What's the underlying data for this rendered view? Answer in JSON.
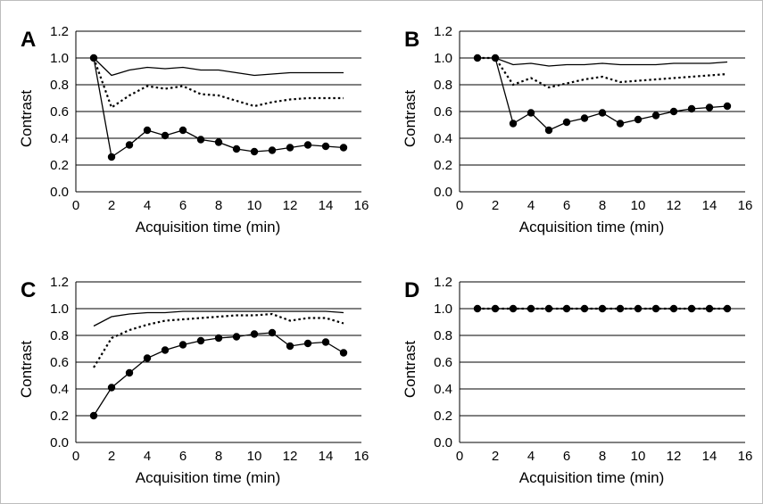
{
  "chart_data": [
    {
      "type": "line",
      "panel_label": "A",
      "xlabel": "Acquisition time  (min)",
      "ylabel": "Contrast",
      "xlim": [
        0,
        16
      ],
      "ylim": [
        0,
        1.2
      ],
      "xticks": [
        "0",
        "2",
        "4",
        "6",
        "8",
        "10",
        "12",
        "14",
        "16"
      ],
      "yticks": [
        "0.0",
        "0.2",
        "0.4",
        "0.6",
        "0.8",
        "1.0",
        "1.2"
      ],
      "grid": "horizontal",
      "legend": "none",
      "x": [
        1,
        2,
        3,
        4,
        5,
        6,
        7,
        8,
        9,
        10,
        11,
        12,
        13,
        14,
        15
      ],
      "series": [
        {
          "style": "solid",
          "values": [
            1.0,
            0.87,
            0.91,
            0.93,
            0.92,
            0.93,
            0.91,
            0.91,
            0.89,
            0.87,
            0.88,
            0.89,
            0.89,
            0.89,
            0.89
          ]
        },
        {
          "style": "dotted",
          "values": [
            1.0,
            0.63,
            0.72,
            0.79,
            0.77,
            0.79,
            0.73,
            0.72,
            0.68,
            0.64,
            0.67,
            0.69,
            0.7,
            0.7,
            0.7
          ]
        },
        {
          "style": "markers",
          "values": [
            1.0,
            0.26,
            0.35,
            0.46,
            0.42,
            0.46,
            0.39,
            0.37,
            0.32,
            0.3,
            0.31,
            0.33,
            0.35,
            0.34,
            0.33
          ]
        }
      ]
    },
    {
      "type": "line",
      "panel_label": "B",
      "xlabel": "Acquisition time  (min)",
      "ylabel": "Contrast",
      "xlim": [
        0,
        16
      ],
      "ylim": [
        0,
        1.2
      ],
      "xticks": [
        "0",
        "2",
        "4",
        "6",
        "8",
        "10",
        "12",
        "14",
        "16"
      ],
      "yticks": [
        "0.0",
        "0.2",
        "0.4",
        "0.6",
        "0.8",
        "1.0",
        "1.2"
      ],
      "grid": "horizontal",
      "legend": "none",
      "x": [
        1,
        2,
        3,
        4,
        5,
        6,
        7,
        8,
        9,
        10,
        11,
        12,
        13,
        14,
        15
      ],
      "series": [
        {
          "style": "solid",
          "values": [
            1.0,
            1.0,
            0.95,
            0.96,
            0.94,
            0.95,
            0.95,
            0.96,
            0.95,
            0.95,
            0.95,
            0.96,
            0.96,
            0.96,
            0.97
          ]
        },
        {
          "style": "dotted",
          "values": [
            1.0,
            1.0,
            0.8,
            0.85,
            0.78,
            0.81,
            0.84,
            0.86,
            0.82,
            0.83,
            0.84,
            0.85,
            0.86,
            0.87,
            0.88
          ]
        },
        {
          "style": "markers",
          "values": [
            1.0,
            1.0,
            0.51,
            0.59,
            0.46,
            0.52,
            0.55,
            0.59,
            0.51,
            0.54,
            0.57,
            0.6,
            0.62,
            0.63,
            0.64
          ]
        }
      ]
    },
    {
      "type": "line",
      "panel_label": "C",
      "xlabel": "Acquisition time  (min)",
      "ylabel": "Contrast",
      "xlim": [
        0,
        16
      ],
      "ylim": [
        0,
        1.2
      ],
      "xticks": [
        "0",
        "2",
        "4",
        "6",
        "8",
        "10",
        "12",
        "14",
        "16"
      ],
      "yticks": [
        "0.0",
        "0.2",
        "0.4",
        "0.6",
        "0.8",
        "1.0",
        "1.2"
      ],
      "grid": "horizontal",
      "legend": "none",
      "x": [
        1,
        2,
        3,
        4,
        5,
        6,
        7,
        8,
        9,
        10,
        11,
        12,
        13,
        14,
        15
      ],
      "series": [
        {
          "style": "solid",
          "values": [
            0.87,
            0.94,
            0.96,
            0.97,
            0.97,
            0.98,
            0.98,
            0.98,
            0.98,
            0.98,
            0.98,
            0.98,
            0.98,
            0.98,
            0.97
          ]
        },
        {
          "style": "dotted",
          "values": [
            0.56,
            0.78,
            0.84,
            0.88,
            0.91,
            0.92,
            0.93,
            0.94,
            0.95,
            0.95,
            0.96,
            0.91,
            0.93,
            0.93,
            0.89
          ]
        },
        {
          "style": "markers",
          "values": [
            0.2,
            0.41,
            0.52,
            0.63,
            0.69,
            0.73,
            0.76,
            0.78,
            0.79,
            0.81,
            0.82,
            0.72,
            0.74,
            0.75,
            0.67
          ]
        }
      ]
    },
    {
      "type": "line",
      "panel_label": "D",
      "xlabel": "Acquisition time  (min)",
      "ylabel": "Contrast",
      "xlim": [
        0,
        16
      ],
      "ylim": [
        0,
        1.2
      ],
      "xticks": [
        "0",
        "2",
        "4",
        "6",
        "8",
        "10",
        "12",
        "14",
        "16"
      ],
      "yticks": [
        "0.0",
        "0.2",
        "0.4",
        "0.6",
        "0.8",
        "1.0",
        "1.2"
      ],
      "grid": "horizontal",
      "legend": "none",
      "x": [
        1,
        2,
        3,
        4,
        5,
        6,
        7,
        8,
        9,
        10,
        11,
        12,
        13,
        14,
        15
      ],
      "series": [
        {
          "style": "solid",
          "values": [
            1.0,
            1.0,
            1.0,
            1.0,
            1.0,
            1.0,
            1.0,
            1.0,
            1.0,
            1.0,
            1.0,
            1.0,
            1.0,
            1.0,
            1.0
          ]
        },
        {
          "style": "dotted",
          "values": [
            1.0,
            1.0,
            1.0,
            1.0,
            1.0,
            1.0,
            1.0,
            1.0,
            1.0,
            1.0,
            1.0,
            1.0,
            1.0,
            1.0,
            1.0
          ]
        },
        {
          "style": "markers",
          "values": [
            1.0,
            1.0,
            1.0,
            1.0,
            1.0,
            1.0,
            1.0,
            1.0,
            1.0,
            1.0,
            1.0,
            1.0,
            1.0,
            1.0,
            1.0
          ]
        }
      ]
    }
  ],
  "colors": {
    "line": "#000000",
    "grid": "#000000",
    "background": "#ffffff"
  }
}
